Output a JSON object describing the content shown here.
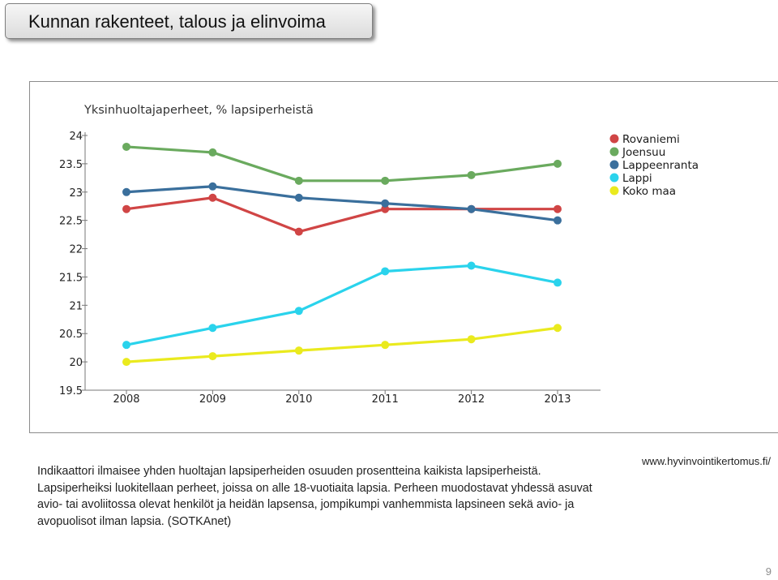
{
  "slide": {
    "title": "Kunnan rakenteet, talous ja elinvoima",
    "website": "www.hyvinvointikertomus.fi/",
    "page_number": "9",
    "caption": [
      "Indikaattori ilmaisee yhden huoltajan lapsiperheiden osuuden prosentteina kaikista lapsiperheistä.",
      "Lapsiperheiksi luokitellaan perheet, joissa on alle 18-vuotiaita lapsia. Perheen muodostavat yhdessä asuvat avio- tai avoliitossa olevat henkilöt ja heidän lapsensa, jompikumpi vanhemmista lapsineen sekä avio- ja avopuolisot ilman lapsia. (SOTKAnet)"
    ]
  },
  "chart_data": {
    "type": "line",
    "title": "Yksinhuoltajaperheet, % lapsiperheistä",
    "xlabel": "",
    "ylabel": "",
    "x": [
      "2008",
      "2009",
      "2010",
      "2011",
      "2012",
      "2013"
    ],
    "ylim": [
      19.5,
      24
    ],
    "yticks": [
      "19.5",
      "20",
      "20.5",
      "21",
      "21.5",
      "22",
      "22.5",
      "23",
      "23.5",
      "24"
    ],
    "grid": false,
    "legend_position": "top-right",
    "series": [
      {
        "name": "Rovaniemi",
        "color": "#d04545",
        "values": [
          22.7,
          22.9,
          22.3,
          22.7,
          22.7,
          22.7
        ]
      },
      {
        "name": "Joensuu",
        "color": "#6aaa5e",
        "values": [
          23.8,
          23.7,
          23.2,
          23.2,
          23.3,
          23.5
        ]
      },
      {
        "name": "Lappeenranta",
        "color": "#3a6f9c",
        "values": [
          23.0,
          23.1,
          22.9,
          22.8,
          22.7,
          22.5
        ]
      },
      {
        "name": "Lappi",
        "color": "#2ad3ec",
        "values": [
          20.3,
          20.6,
          20.9,
          21.6,
          21.7,
          21.4
        ]
      },
      {
        "name": "Koko maa",
        "color": "#eaea1e",
        "values": [
          20.0,
          20.1,
          20.2,
          20.3,
          20.4,
          20.6
        ]
      }
    ]
  }
}
